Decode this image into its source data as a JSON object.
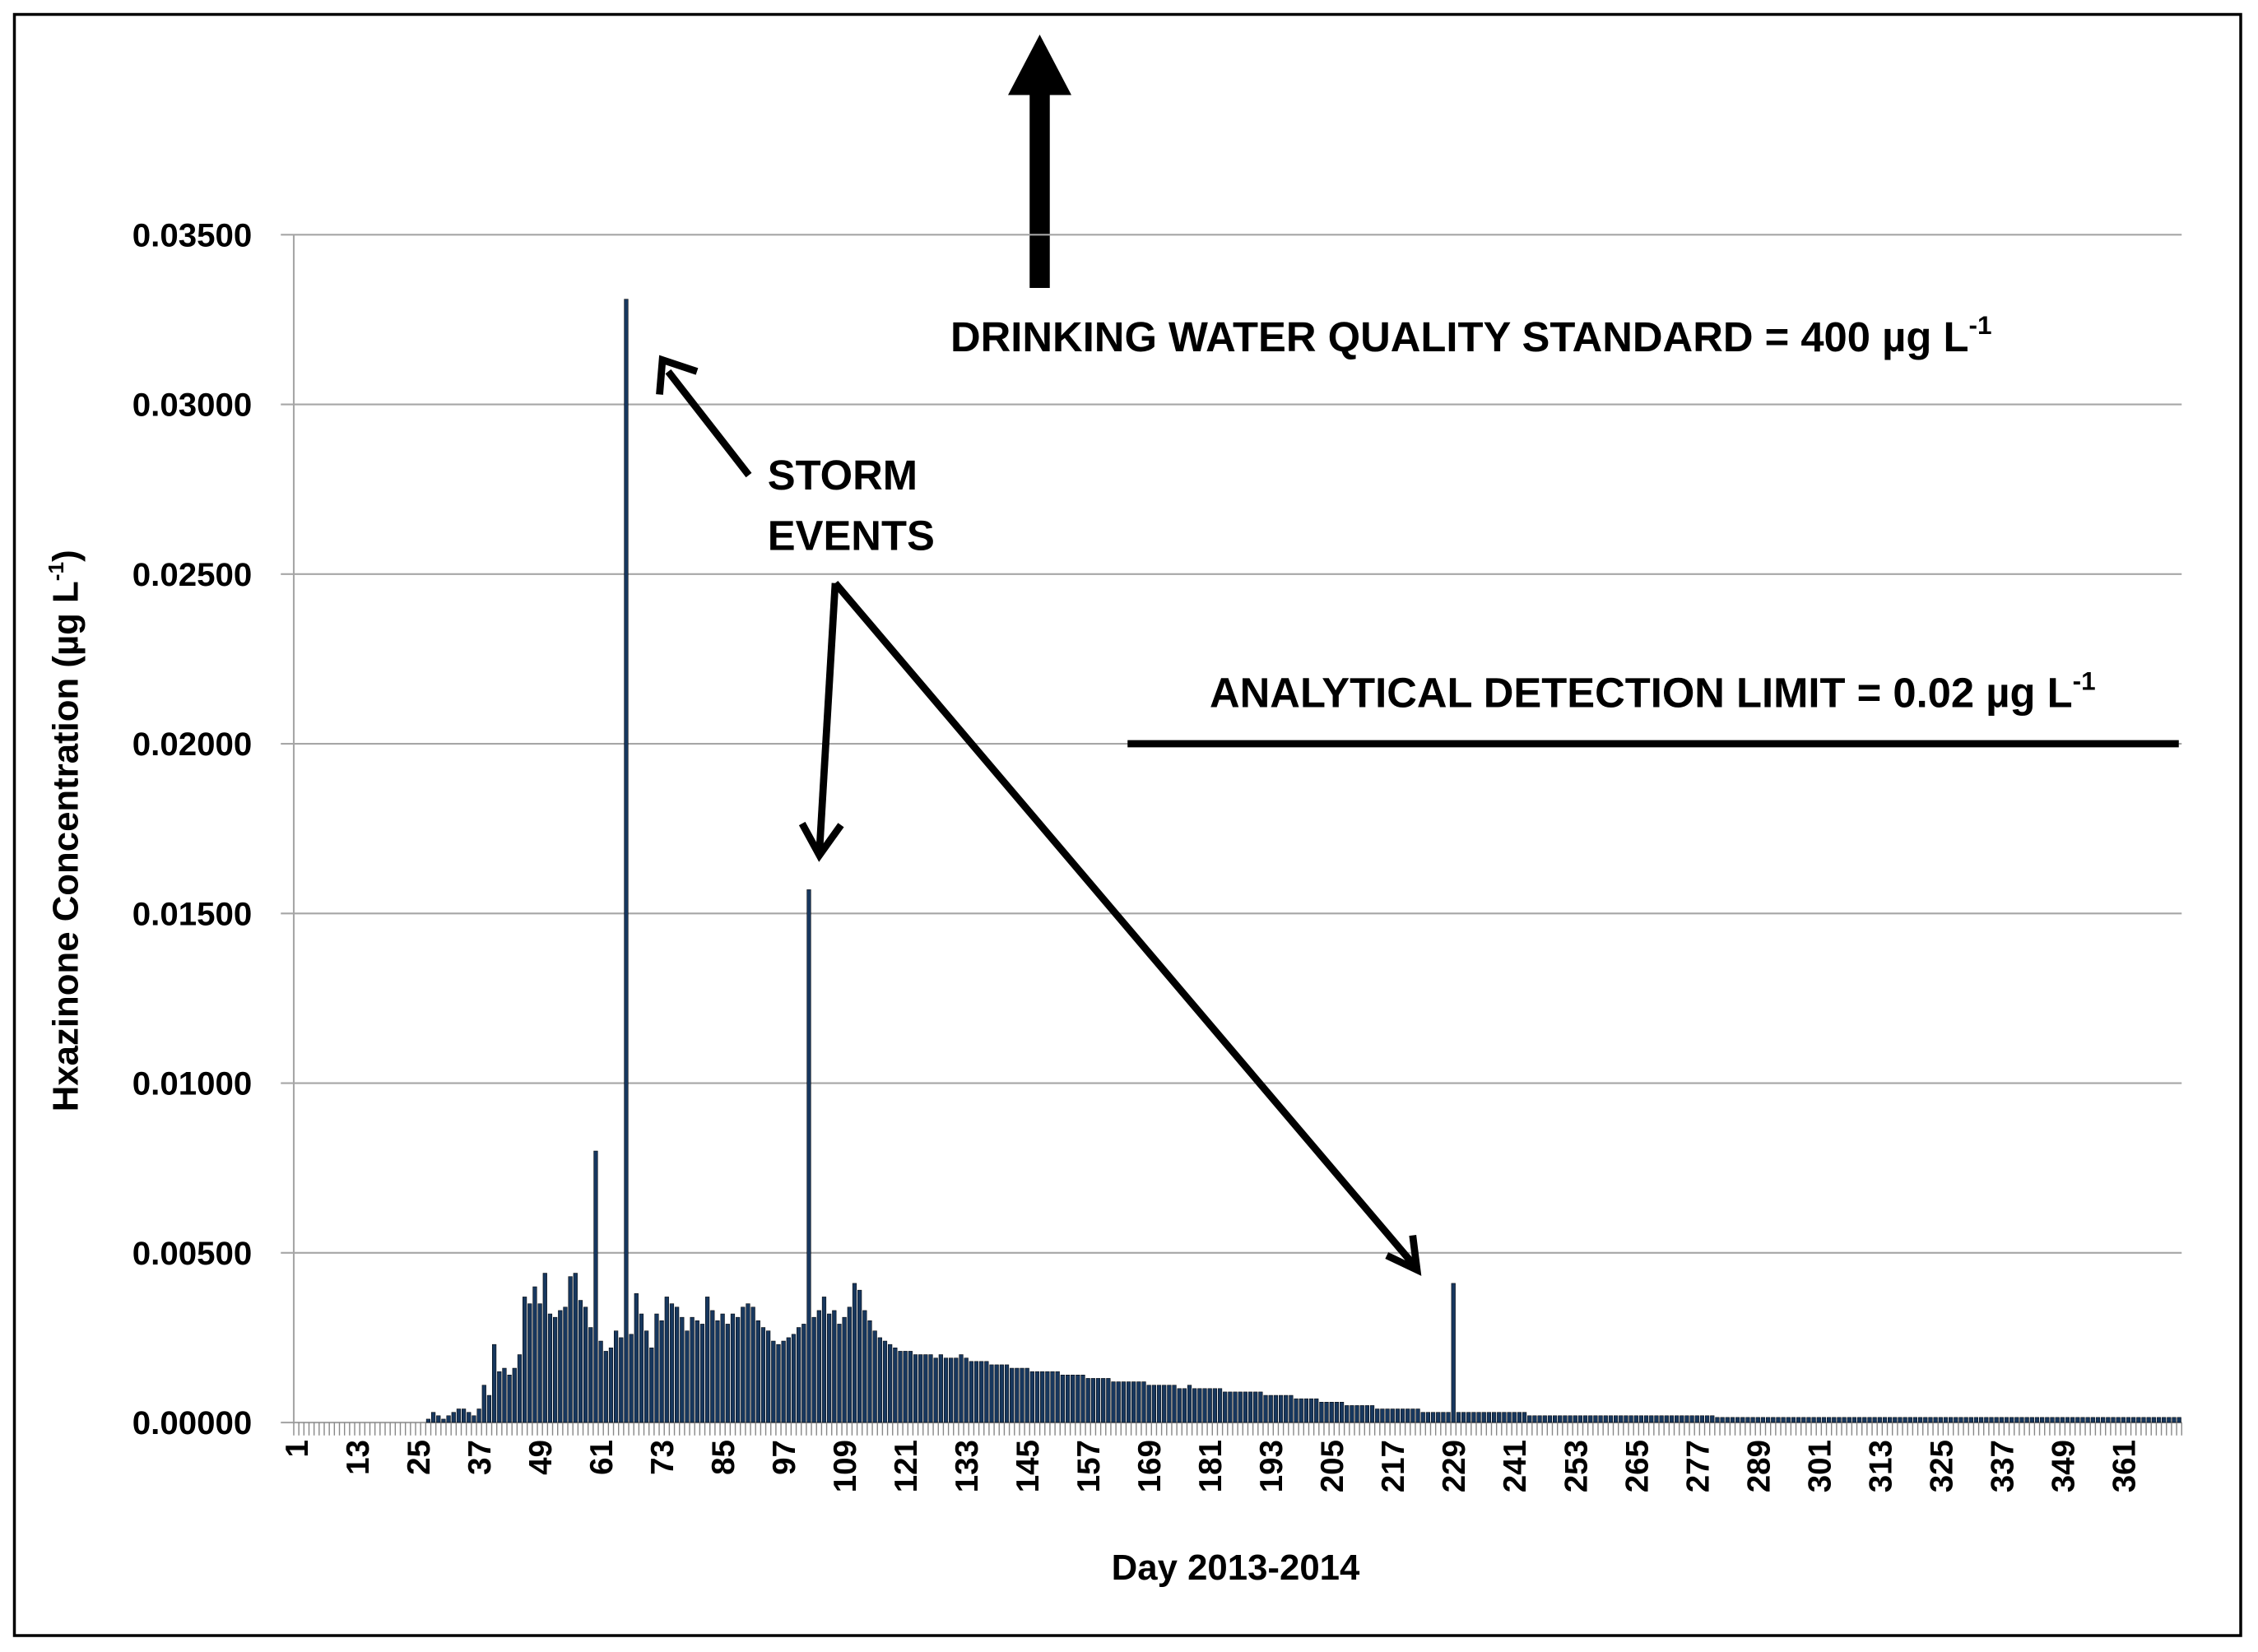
{
  "chart_data": {
    "type": "bar",
    "y_label": {
      "text": "Hxazinone  Concentration (µg L",
      "sup": "-1",
      "after": ")"
    },
    "x_label": "Day 2013-2014",
    "annotations": [
      {
        "text": "DRINKING WATER QUALITY STANDARD = 400 µg L",
        "sup": "-1"
      },
      {
        "lines": [
          "STORM",
          "EVENTS"
        ]
      },
      {
        "text": "ANALYTICAL DETECTION LIMIT = 0.02 µg L",
        "sup": "-1",
        "line_value": 0.02
      }
    ],
    "color": "#17375e",
    "grid": true,
    "ylim": [
      0,
      0.035
    ],
    "yticks": [
      {
        "value": 0,
        "label": "0.00000"
      },
      {
        "value": 0.005,
        "label": "0.00500"
      },
      {
        "value": 0.01,
        "label": "0.01000"
      },
      {
        "value": 0.015,
        "label": "0.01500"
      },
      {
        "value": 0.02,
        "label": "0.02000"
      },
      {
        "value": 0.025,
        "label": "0.02500"
      },
      {
        "value": 0.03,
        "label": "0.03000"
      },
      {
        "value": 0.035,
        "label": "0.03500"
      }
    ],
    "categories": [
      "1",
      null,
      null,
      null,
      null,
      null,
      null,
      null,
      null,
      null,
      null,
      null,
      "13",
      null,
      null,
      null,
      null,
      null,
      null,
      null,
      null,
      null,
      null,
      null,
      "25",
      null,
      null,
      null,
      null,
      null,
      null,
      null,
      null,
      null,
      null,
      null,
      "37",
      null,
      null,
      null,
      null,
      null,
      null,
      null,
      null,
      null,
      null,
      null,
      "49",
      null,
      null,
      null,
      null,
      null,
      null,
      null,
      null,
      null,
      null,
      null,
      "61",
      null,
      null,
      null,
      null,
      null,
      null,
      null,
      null,
      null,
      null,
      null,
      "73",
      null,
      null,
      null,
      null,
      null,
      null,
      null,
      null,
      null,
      null,
      null,
      "85",
      null,
      null,
      null,
      null,
      null,
      null,
      null,
      null,
      null,
      null,
      null,
      "97",
      null,
      null,
      null,
      null,
      null,
      null,
      null,
      null,
      null,
      null,
      null,
      "109",
      null,
      null,
      null,
      null,
      null,
      null,
      null,
      null,
      null,
      null,
      null,
      "121",
      null,
      null,
      null,
      null,
      null,
      null,
      null,
      null,
      null,
      null,
      null,
      "133",
      null,
      null,
      null,
      null,
      null,
      null,
      null,
      null,
      null,
      null,
      null,
      "145",
      null,
      null,
      null,
      null,
      null,
      null,
      null,
      null,
      null,
      null,
      null,
      "157",
      null,
      null,
      null,
      null,
      null,
      null,
      null,
      null,
      null,
      null,
      null,
      "169",
      null,
      null,
      null,
      null,
      null,
      null,
      null,
      null,
      null,
      null,
      null,
      "181",
      null,
      null,
      null,
      null,
      null,
      null,
      null,
      null,
      null,
      null,
      null,
      "193",
      null,
      null,
      null,
      null,
      null,
      null,
      null,
      null,
      null,
      null,
      null,
      "205",
      null,
      null,
      null,
      null,
      null,
      null,
      null,
      null,
      null,
      null,
      null,
      "217",
      null,
      null,
      null,
      null,
      null,
      null,
      null,
      null,
      null,
      null,
      null,
      "229",
      null,
      null,
      null,
      null,
      null,
      null,
      null,
      null,
      null,
      null,
      null,
      "241",
      null,
      null,
      null,
      null,
      null,
      null,
      null,
      null,
      null,
      null,
      null,
      "253",
      null,
      null,
      null,
      null,
      null,
      null,
      null,
      null,
      null,
      null,
      null,
      "265",
      null,
      null,
      null,
      null,
      null,
      null,
      null,
      null,
      null,
      null,
      null,
      "277",
      null,
      null,
      null,
      null,
      null,
      null,
      null,
      null,
      null,
      null,
      null,
      "289",
      null,
      null,
      null,
      null,
      null,
      null,
      null,
      null,
      null,
      null,
      null,
      "301",
      null,
      null,
      null,
      null,
      null,
      null,
      null,
      null,
      null,
      null,
      null,
      "313",
      null,
      null,
      null,
      null,
      null,
      null,
      null,
      null,
      null,
      null,
      null,
      "325",
      null,
      null,
      null,
      null,
      null,
      null,
      null,
      null,
      null,
      null,
      null,
      "337",
      null,
      null,
      null,
      null,
      null,
      null,
      null,
      null,
      null,
      null,
      null,
      "349",
      null,
      null,
      null,
      null,
      null,
      null,
      null,
      null,
      null,
      null,
      null,
      "361",
      null,
      null,
      null,
      null,
      null,
      null,
      null,
      null,
      null,
      null,
      null
    ],
    "values": [
      0,
      0,
      0,
      0,
      0,
      0,
      0,
      0,
      0,
      0,
      0,
      0,
      0,
      0,
      0,
      0,
      0,
      0,
      0,
      0,
      0,
      0,
      0,
      0,
      0,
      0,
      0.0001,
      0.0003,
      0.0002,
      0.0001,
      0.0002,
      0.0003,
      0.0004,
      0.0004,
      0.0003,
      0.0002,
      0.0004,
      0.0011,
      0.0008,
      0.0023,
      0.0015,
      0.0016,
      0.0014,
      0.0016,
      0.002,
      0.0037,
      0.0035,
      0.004,
      0.0035,
      0.0044,
      0.0032,
      0.0031,
      0.0033,
      0.0034,
      0.0043,
      0.0044,
      0.0036,
      0.0034,
      0.0028,
      0.008,
      0.0024,
      0.0021,
      0.0022,
      0.0027,
      0.0025,
      0.0331,
      0.0026,
      0.0038,
      0.0032,
      0.0027,
      0.0022,
      0.0032,
      0.003,
      0.0037,
      0.0035,
      0.0034,
      0.0031,
      0.0027,
      0.0031,
      0.003,
      0.0029,
      0.0037,
      0.0033,
      0.003,
      0.0032,
      0.0029,
      0.0032,
      0.0031,
      0.0034,
      0.0035,
      0.0034,
      0.003,
      0.0028,
      0.0027,
      0.0024,
      0.0023,
      0.0024,
      0.0025,
      0.0026,
      0.0028,
      0.0029,
      0.0157,
      0.0031,
      0.0033,
      0.0037,
      0.0032,
      0.0033,
      0.0029,
      0.0031,
      0.0034,
      0.0041,
      0.0039,
      0.0033,
      0.003,
      0.0027,
      0.0025,
      0.0024,
      0.0023,
      0.0022,
      0.0021,
      0.0021,
      0.0021,
      0.002,
      0.002,
      0.002,
      0.002,
      0.0019,
      0.002,
      0.0019,
      0.0019,
      0.0019,
      0.002,
      0.0019,
      0.0018,
      0.0018,
      0.0018,
      0.0018,
      0.0017,
      0.0017,
      0.0017,
      0.0017,
      0.0016,
      0.0016,
      0.0016,
      0.0016,
      0.0015,
      0.0015,
      0.0015,
      0.0015,
      0.0015,
      0.0015,
      0.0014,
      0.0014,
      0.0014,
      0.0014,
      0.0014,
      0.0013,
      0.0013,
      0.0013,
      0.0013,
      0.0013,
      0.0012,
      0.0012,
      0.0012,
      0.0012,
      0.0012,
      0.0012,
      0.0012,
      0.0011,
      0.0011,
      0.0011,
      0.0011,
      0.0011,
      0.0011,
      0.001,
      0.001,
      0.0011,
      0.001,
      0.001,
      0.001,
      0.001,
      0.001,
      0.001,
      0.0009,
      0.0009,
      0.0009,
      0.0009,
      0.0009,
      0.0009,
      0.0009,
      0.0009,
      0.0008,
      0.0008,
      0.0008,
      0.0008,
      0.0008,
      0.0008,
      0.0007,
      0.0007,
      0.0007,
      0.0007,
      0.0007,
      0.0006,
      0.0006,
      0.0006,
      0.0006,
      0.0006,
      0.0005,
      0.0005,
      0.0005,
      0.0005,
      0.0005,
      0.0005,
      0.0004,
      0.0004,
      0.0004,
      0.0004,
      0.0004,
      0.0004,
      0.0004,
      0.0004,
      0.0004,
      0.0003,
      0.0003,
      0.0003,
      0.0003,
      0.0003,
      0.0003,
      0.0041,
      0.0003,
      0.0003,
      0.0003,
      0.0003,
      0.0003,
      0.0003,
      0.0003,
      0.0003,
      0.0003,
      0.0003,
      0.0003,
      0.0003,
      0.0003,
      0.0003,
      0.0002,
      0.0002,
      0.0002,
      0.0002,
      0.0002,
      0.0002,
      0.0002,
      0.0002,
      0.0002,
      0.0002,
      0.0002,
      0.0002,
      0.0002,
      0.0002,
      0.0002,
      0.0002,
      0.0002,
      0.0002,
      0.0002,
      0.0002,
      0.0002,
      0.0002,
      0.0002,
      0.0002,
      0.0002,
      0.0002,
      0.0002,
      0.0002,
      0.0002,
      0.0002,
      0.0002,
      0.0002,
      0.0002,
      0.0002,
      0.0002,
      0.0002,
      0.0002,
      0.00015,
      0.00015,
      0.00015,
      0.00015,
      0.00015,
      0.00015,
      0.00015,
      0.00015,
      0.00015,
      0.00015,
      0.00015,
      0.00015,
      0.00015,
      0.00015,
      0.00015,
      0.00015,
      0.00015,
      0.00015,
      0.00015,
      0.00015,
      0.00015,
      0.00015,
      0.00015,
      0.00015,
      0.00015,
      0.00015,
      0.00015,
      0.00015,
      0.00015,
      0.00015,
      0.00015,
      0.00015,
      0.00015,
      0.00015,
      0.00015,
      0.00015,
      0.00015,
      0.00015,
      0.00015,
      0.00015,
      0.00015,
      0.00015,
      0.00015,
      0.00015,
      0.00015,
      0.00015,
      0.00015,
      0.00015,
      0.00015,
      0.00015,
      0.00015,
      0.00015,
      0.00015,
      0.00015,
      0.00015,
      0.00015,
      0.00015,
      0.00015,
      0.00015,
      0.00015,
      0.00015,
      0.00015,
      0.00015,
      0.00015,
      0.00015,
      0.00015,
      0.00015,
      0.00015,
      0.00015,
      0.00015,
      0.00015,
      0.00015,
      0.00015,
      0.00015,
      0.00015,
      0.00015,
      0.00015,
      0.00015,
      0.00015,
      0.00015,
      0.00015,
      0.00015,
      0.00015,
      0.00015,
      0.00015,
      0.00015,
      0.00015,
      0.00015,
      0.00015,
      0.00015,
      0.00015,
      0.00015
    ]
  }
}
